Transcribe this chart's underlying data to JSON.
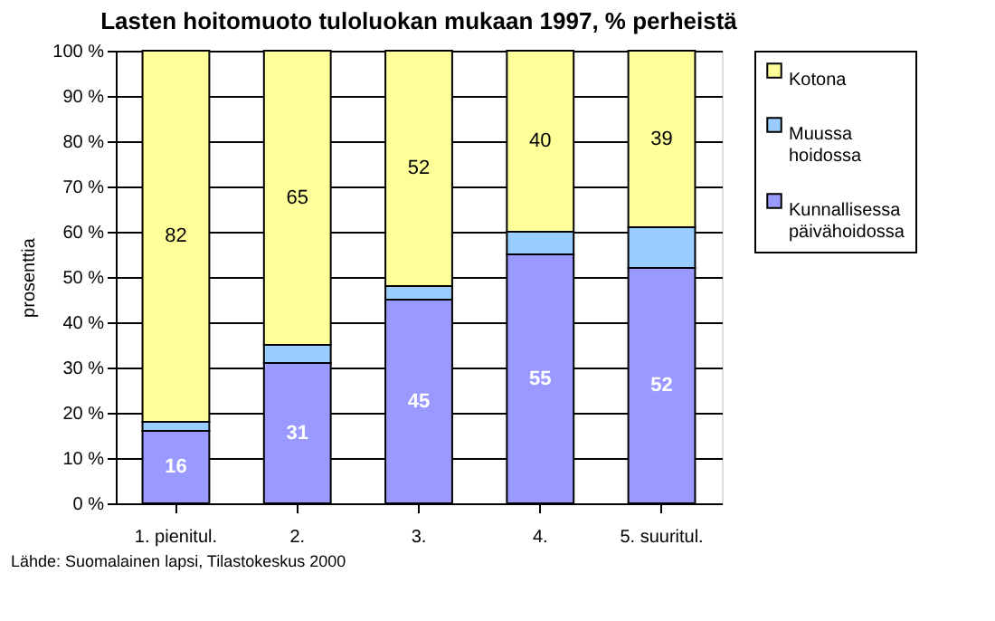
{
  "chart_data": {
    "type": "bar",
    "stacked": true,
    "title": "Lasten hoitomuoto tuloluokan mukaan 1997, % perheistä",
    "ylabel": "prosenttia",
    "categories": [
      "1. pienitul.",
      "2.",
      "3.",
      "4.",
      "5. suuritul."
    ],
    "series": [
      {
        "name": "Kunnallisessa päivähoidossa",
        "color": "#9999ff",
        "values": [
          16,
          31,
          45,
          55,
          52
        ],
        "value_labels": [
          "16",
          "31",
          "45",
          "55",
          "52"
        ]
      },
      {
        "name": "Muussa hoidossa",
        "color": "#99ccff",
        "values": [
          2,
          4,
          3,
          5,
          9
        ]
      },
      {
        "name": "Kotona",
        "color": "#ffff99",
        "values": [
          82,
          65,
          52,
          40,
          39
        ],
        "value_labels": [
          "82",
          "65",
          "52",
          "40",
          "39"
        ]
      }
    ],
    "ylim": [
      0,
      100
    ],
    "yticks": [
      {
        "value": 0,
        "label": "0 %"
      },
      {
        "value": 10,
        "label": "10 %"
      },
      {
        "value": 20,
        "label": "20 %"
      },
      {
        "value": 30,
        "label": "30 %"
      },
      {
        "value": 40,
        "label": "40 %"
      },
      {
        "value": 50,
        "label": "50 %"
      },
      {
        "value": 60,
        "label": "60 %"
      },
      {
        "value": 70,
        "label": "70 %"
      },
      {
        "value": 80,
        "label": "80 %"
      },
      {
        "value": 90,
        "label": "90 %"
      },
      {
        "value": 100,
        "label": "100 %"
      }
    ],
    "grid": "y",
    "legend": "right",
    "annotations": [
      "Lähde: Suomalainen lapsi, Tilastokeskus 2000"
    ]
  }
}
